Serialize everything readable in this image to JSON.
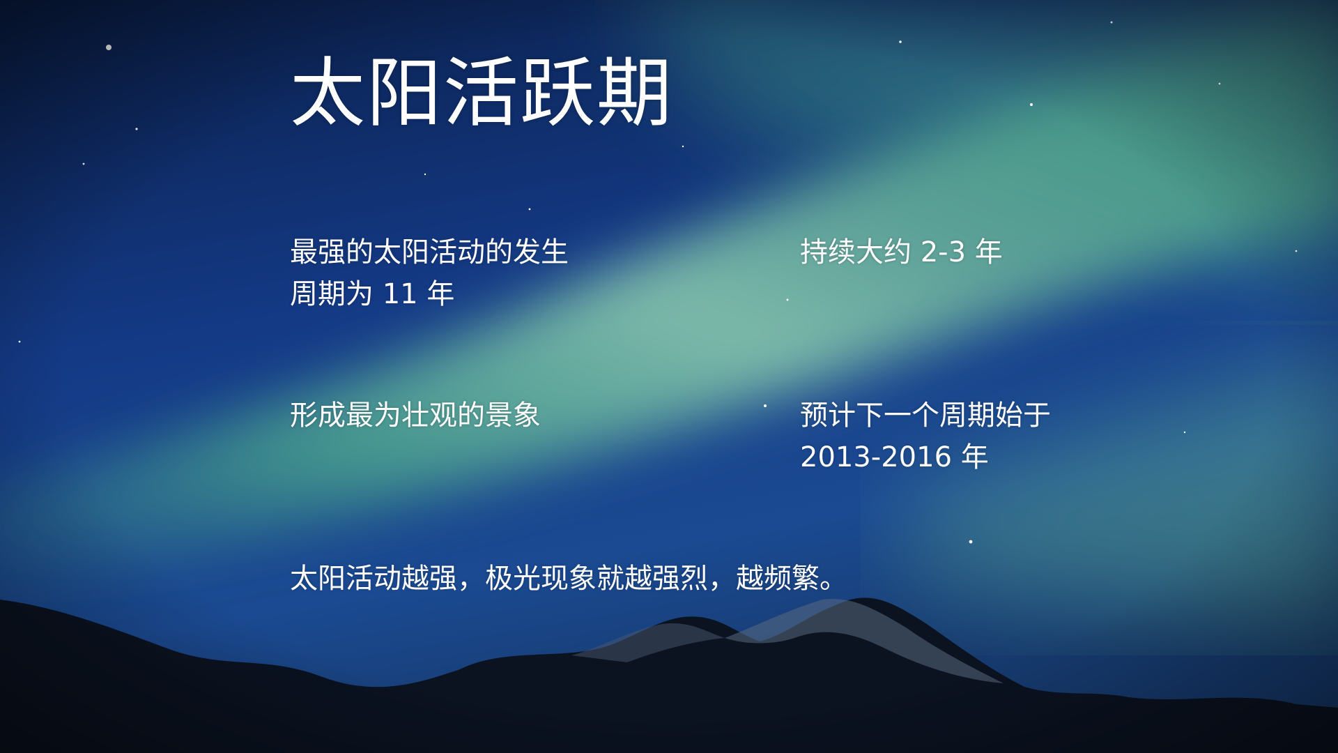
{
  "slide": {
    "title": "太阳活跃期",
    "blocks": {
      "cycle": [
        "最强的太阳活动的发生",
        "周期为 11 年"
      ],
      "duration": [
        "持续大约 2-3 年"
      ],
      "spectacle": [
        "形成最为壮观的景象"
      ],
      "next_cycle": [
        "预计下一个周期始于",
        "2013-2016 年"
      ],
      "summary": [
        "太阳活动越强，极光现象就越强烈，越频繁。"
      ]
    }
  },
  "background": {
    "subject": "aurora-night-sky-with-mountains",
    "colors": {
      "sky_dark": "#06163a",
      "sky_blue": "#163c8a",
      "aurora_green": "#4fb38e",
      "aurora_light": "#9fd6b8",
      "mountain": "#0a0f1c"
    }
  }
}
